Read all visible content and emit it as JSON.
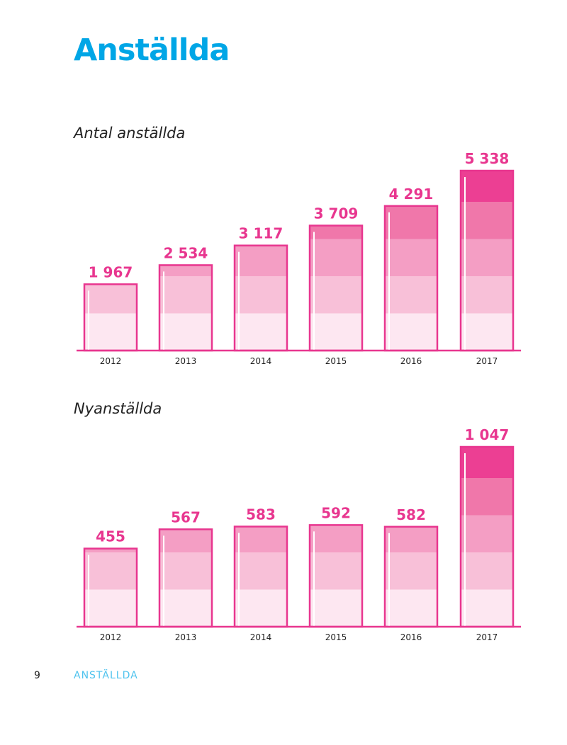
{
  "page": {
    "title": "Anställda",
    "number": "9",
    "section": "ANSTÄLLDA"
  },
  "colors": {
    "title": "#00a6e6",
    "accent": "#e8368f",
    "bands": [
      "#fde7f1",
      "#f8c0d8",
      "#f49ec4",
      "#f077aa",
      "#ec3f93"
    ]
  },
  "chart_data": [
    {
      "id": "antal-anstallda",
      "type": "bar",
      "title": "Antal anställda",
      "categories": [
        "2012",
        "2013",
        "2014",
        "2015",
        "2016",
        "2017"
      ],
      "values": [
        1967,
        2534,
        3117,
        3709,
        4291,
        5338
      ],
      "labels": [
        "1 967",
        "2 534",
        "3 117",
        "3 709",
        "4 291",
        "5 338"
      ],
      "band_size": 1000,
      "ylim": [
        0,
        5338
      ],
      "xlabel": "",
      "ylabel": ""
    },
    {
      "id": "nyanstallda",
      "type": "bar",
      "title": "Nyanställda",
      "categories": [
        "2012",
        "2013",
        "2014",
        "2015",
        "2016",
        "2017"
      ],
      "values": [
        455,
        567,
        583,
        592,
        582,
        1047
      ],
      "labels": [
        "455",
        "567",
        "583",
        "592",
        "582",
        "1 047"
      ],
      "band_size": 200,
      "ylim": [
        0,
        1047
      ],
      "xlabel": "",
      "ylabel": ""
    }
  ]
}
